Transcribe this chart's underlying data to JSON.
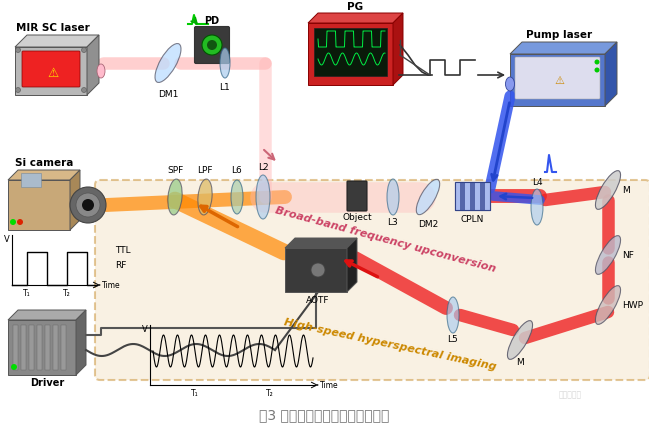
{
  "title": "图3 中红外高速高光谱成像装置图",
  "title_color": "#777777",
  "bg_color": "#ffffff",
  "fig_width": 6.49,
  "fig_height": 4.28,
  "labels": {
    "mir_sc_laser": "MIR SC laser",
    "pump_laser": "Pump laser",
    "si_camera": "Si camera",
    "pd": "PD",
    "pg": "PG",
    "dm1": "DM1",
    "dm2": "DM2",
    "l1": "L1",
    "l2": "L2",
    "l3": "L3",
    "l4": "L4",
    "l5": "L5",
    "l6": "L6",
    "spf": "SPF",
    "lpf": "LPF",
    "object_label": "Object",
    "cpln": "CPLN",
    "aotf": "AOTF",
    "m_right": "M",
    "m_bottom": "M",
    "nf": "NF",
    "hwp": "HWP",
    "ttl": "TTL",
    "rf": "RF",
    "driver": "Driver",
    "broadband_text": "Broad-band frequency upconversion",
    "highspeed_text": "High-speed hyperspectral imaging",
    "v_label": "V",
    "time_label": "Time",
    "t1_label": "T₁",
    "t2_label": "T₂"
  },
  "colors": {
    "red_beam": "#dd2222",
    "green_beam": "#00bb00",
    "blue_beam": "#2244ee",
    "orange_beam": "#ee8800",
    "pink_beam": "#ffbbbb",
    "purple_beam": "#cc99dd",
    "broadband_text": "#cc4466",
    "highspeed_text": "#cc8800",
    "box_gray": "#aaaaaa",
    "box_blue": "#5577cc",
    "box_red": "#cc2222",
    "box_tan": "#c8a878",
    "box_dark": "#444444",
    "laser_gray": "#c0c0c0",
    "laser_blue": "#5577cc",
    "crystal_color": "#6688cc",
    "lens_green": "#88cc88",
    "lens_blue": "#88bbdd",
    "lens_purple": "#bb99cc",
    "mirror_color": "#cccccc",
    "region_fill": "#f5e6cc",
    "region_stroke": "#cc9944",
    "driver_gray": "#888888",
    "aotf_dark": "#444444"
  }
}
